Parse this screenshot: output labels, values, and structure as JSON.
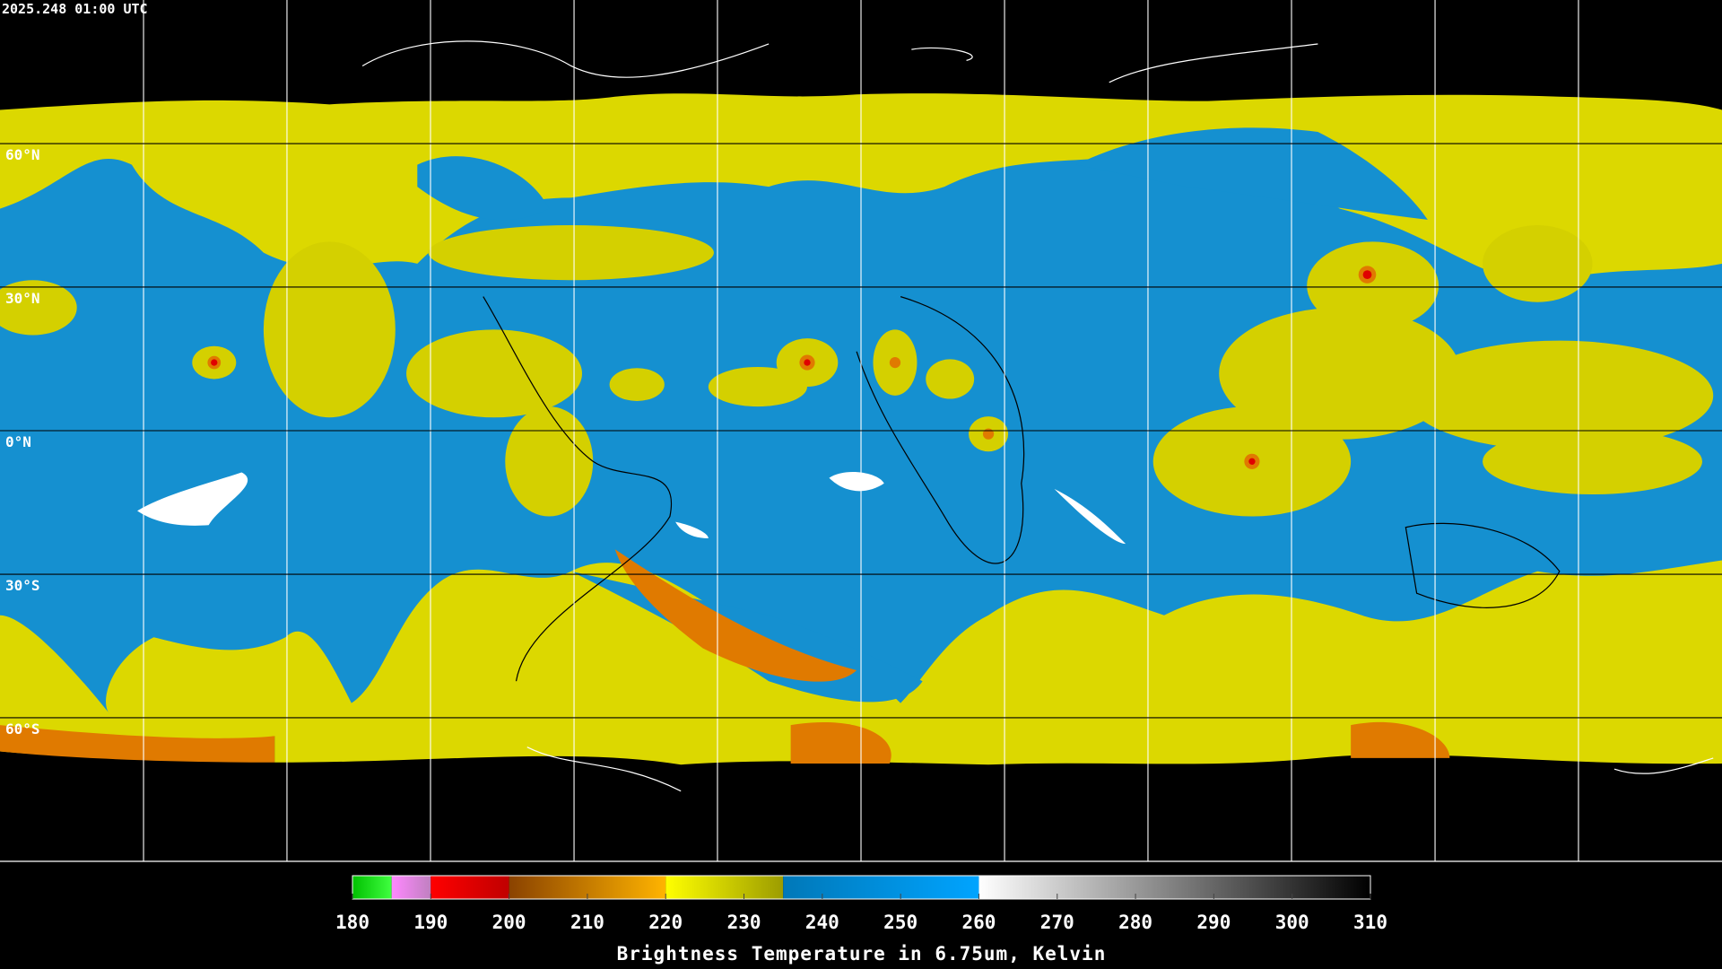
{
  "header": {
    "timestamp": "2025.248 01:00 UTC"
  },
  "map": {
    "lat_labels": [
      "60°N",
      "30°N",
      "0°N",
      "30°S",
      "60°S"
    ]
  },
  "colorbar": {
    "title": "Brightness Temperature in 6.75um, Kelvin",
    "lim": [
      180,
      310
    ],
    "ticks": [
      180,
      190,
      200,
      210,
      220,
      230,
      240,
      250,
      260,
      270,
      280,
      290,
      300,
      310
    ],
    "segments": [
      {
        "from": 180,
        "to": 185,
        "colors": [
          "#00c000",
          "#40ff40"
        ]
      },
      {
        "from": 185,
        "to": 190,
        "colors": [
          "#ff88ff",
          "#c080c0"
        ]
      },
      {
        "from": 190,
        "to": 200,
        "colors": [
          "#ff0000",
          "#c00000"
        ]
      },
      {
        "from": 200,
        "to": 220,
        "colors": [
          "#8a4200",
          "#ffb400"
        ]
      },
      {
        "from": 220,
        "to": 235,
        "colors": [
          "#ffff00",
          "#9c9c00"
        ]
      },
      {
        "from": 235,
        "to": 260,
        "colors": [
          "#0078b8",
          "#00a4ff"
        ]
      },
      {
        "from": 260,
        "to": 310,
        "colors": [
          "#ffffff",
          "#000000"
        ]
      }
    ]
  }
}
